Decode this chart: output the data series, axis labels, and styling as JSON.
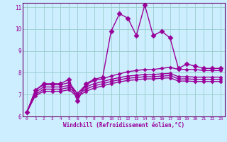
{
  "background_color": "#cceeff",
  "grid_color": "#99cccc",
  "line_color": "#990099",
  "spine_color": "#660066",
  "xlabel": "Windchill (Refroidissement éolien,°C)",
  "xlim": [
    -0.5,
    23.5
  ],
  "ylim": [
    6,
    11.2
  ],
  "yticks": [
    6,
    7,
    8,
    9,
    10,
    11
  ],
  "xticks": [
    0,
    1,
    2,
    3,
    4,
    5,
    6,
    7,
    8,
    9,
    10,
    11,
    12,
    13,
    14,
    15,
    16,
    17,
    18,
    19,
    20,
    21,
    22,
    23
  ],
  "series": [
    [
      6.2,
      7.2,
      7.5,
      7.5,
      7.5,
      7.7,
      6.7,
      7.5,
      7.7,
      7.8,
      9.9,
      10.7,
      10.5,
      9.7,
      11.1,
      9.7,
      9.9,
      9.6,
      8.2,
      8.4,
      8.3,
      8.2,
      8.2,
      8.2
    ],
    [
      6.2,
      7.2,
      7.45,
      7.45,
      7.45,
      7.55,
      7.05,
      7.45,
      7.65,
      7.72,
      7.85,
      7.95,
      8.05,
      8.1,
      8.15,
      8.15,
      8.2,
      8.25,
      8.15,
      8.15,
      8.15,
      8.1,
      8.1,
      8.1
    ],
    [
      6.2,
      7.1,
      7.35,
      7.35,
      7.35,
      7.42,
      7.05,
      7.35,
      7.5,
      7.6,
      7.7,
      7.78,
      7.85,
      7.88,
      7.92,
      7.92,
      7.95,
      7.97,
      7.82,
      7.82,
      7.8,
      7.8,
      7.8,
      7.8
    ],
    [
      6.2,
      7.0,
      7.25,
      7.25,
      7.25,
      7.32,
      6.98,
      7.25,
      7.4,
      7.5,
      7.6,
      7.68,
      7.75,
      7.78,
      7.82,
      7.82,
      7.85,
      7.87,
      7.72,
      7.72,
      7.7,
      7.7,
      7.7,
      7.7
    ],
    [
      6.2,
      6.95,
      7.15,
      7.15,
      7.15,
      7.22,
      6.9,
      7.15,
      7.3,
      7.4,
      7.5,
      7.58,
      7.65,
      7.68,
      7.72,
      7.72,
      7.75,
      7.77,
      7.62,
      7.62,
      7.6,
      7.6,
      7.6,
      7.6
    ]
  ]
}
